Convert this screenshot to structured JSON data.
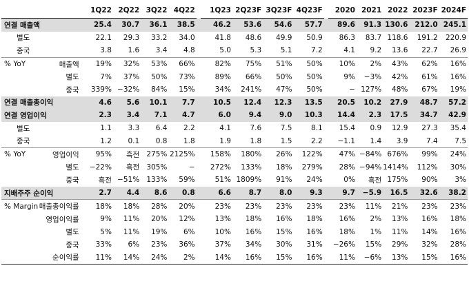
{
  "columns": [
    "1Q22",
    "2Q22",
    "3Q22",
    "4Q22",
    "1Q23",
    "2Q23F",
    "3Q23F",
    "4Q23F",
    "2020",
    "2021",
    "2022",
    "2023F",
    "2024F"
  ],
  "rows": [
    {
      "label": "연결 매출액",
      "sub": "",
      "style": "hl",
      "values": [
        "25.4",
        "30.7",
        "36.1",
        "38.5",
        "46.2",
        "53.6",
        "54.6",
        "57.7",
        "89.6",
        "91.3",
        "130.6",
        "212.0",
        "245.1"
      ]
    },
    {
      "label": "별도",
      "sub": "",
      "style": "indent",
      "values": [
        "22.1",
        "29.3",
        "33.2",
        "34.0",
        "41.8",
        "48.6",
        "49.9",
        "50.9",
        "86.3",
        "83.7",
        "118.6",
        "191.2",
        "220.9"
      ]
    },
    {
      "label": "중국",
      "sub": "",
      "style": "indent",
      "values": [
        "3.8",
        "1.6",
        "3.4",
        "4.8",
        "5.0",
        "5.3",
        "5.1",
        "7.2",
        "4.1",
        "9.2",
        "13.6",
        "22.7",
        "26.9"
      ]
    },
    {
      "label": "% YoY",
      "sub": "매출액",
      "style": "sep",
      "values": [
        "19%",
        "32%",
        "53%",
        "66%",
        "82%",
        "75%",
        "51%",
        "50%",
        "10%",
        "2%",
        "43%",
        "62%",
        "16%"
      ]
    },
    {
      "label": "",
      "sub": "별도",
      "style": "",
      "values": [
        "7%",
        "37%",
        "50%",
        "73%",
        "89%",
        "66%",
        "50%",
        "50%",
        "9%",
        "−3%",
        "42%",
        "61%",
        "16%"
      ]
    },
    {
      "label": "",
      "sub": "중국",
      "style": "",
      "values": [
        "339%",
        "−32%",
        "84%",
        "15%",
        "34%",
        "241%",
        "47%",
        "50%",
        "−",
        "127%",
        "48%",
        "67%",
        "19%"
      ]
    },
    {
      "label": "연결 매출총이익",
      "sub": "",
      "style": "hl",
      "values": [
        "4.6",
        "5.6",
        "10.1",
        "7.7",
        "10.5",
        "12.4",
        "12.3",
        "13.5",
        "20.5",
        "10.2",
        "27.9",
        "48.7",
        "57.2"
      ]
    },
    {
      "label": "연결 영업이익",
      "sub": "",
      "style": "hl",
      "values": [
        "2.3",
        "3.4",
        "7.1",
        "4.7",
        "6.0",
        "9.4",
        "9.0",
        "10.3",
        "14.4",
        "2.3",
        "17.5",
        "34.7",
        "42.9"
      ]
    },
    {
      "label": "별도",
      "sub": "",
      "style": "indent",
      "values": [
        "1.1",
        "3.3",
        "6.4",
        "2.2",
        "4.1",
        "7.6",
        "7.5",
        "8.1",
        "15.4",
        "0.9",
        "12.9",
        "27.3",
        "35.4"
      ]
    },
    {
      "label": "중국",
      "sub": "",
      "style": "indent",
      "values": [
        "1.2",
        "0.1",
        "0.8",
        "1.8",
        "1.9",
        "1.8",
        "1.5",
        "2.2",
        "−1.1",
        "1.4",
        "3.9",
        "7.4",
        "7.5"
      ]
    },
    {
      "label": "% YoY",
      "sub": "영업이익",
      "style": "sep",
      "values": [
        "95%",
        "흑전",
        "275%",
        "2125%",
        "158%",
        "180%",
        "26%",
        "122%",
        "47%",
        "−84%",
        "676%",
        "99%",
        "24%"
      ]
    },
    {
      "label": "",
      "sub": "별도",
      "style": "",
      "values": [
        "−22%",
        "흑전",
        "305%",
        "−",
        "272%",
        "133%",
        "18%",
        "279%",
        "28%",
        "−94%",
        "1414%",
        "112%",
        "30%"
      ]
    },
    {
      "label": "",
      "sub": "중국",
      "style": "",
      "values": [
        "흑전",
        "−51%",
        "133%",
        "59%",
        "51%",
        "1809%",
        "91%",
        "24%",
        "0%",
        "흑전",
        "175%",
        "90%",
        "3%"
      ]
    },
    {
      "label": "지배주주 순이익",
      "sub": "",
      "style": "hl",
      "values": [
        "2.7",
        "4.4",
        "8.6",
        "0.8",
        "6.6",
        "8.7",
        "8.0",
        "9.3",
        "9.7",
        "−5.9",
        "16.5",
        "32.6",
        "38.2"
      ]
    },
    {
      "label": "% Margin",
      "sub": "매출총이익률",
      "style": "sep",
      "values": [
        "18%",
        "18%",
        "28%",
        "20%",
        "23%",
        "23%",
        "23%",
        "23%",
        "23%",
        "11%",
        "21%",
        "23%",
        "23%"
      ]
    },
    {
      "label": "",
      "sub": "영업이익률",
      "style": "",
      "values": [
        "9%",
        "11%",
        "20%",
        "12%",
        "13%",
        "18%",
        "16%",
        "18%",
        "16%",
        "2%",
        "13%",
        "16%",
        "18%"
      ]
    },
    {
      "label": "",
      "sub": "별도",
      "style": "",
      "values": [
        "5%",
        "11%",
        "19%",
        "6%",
        "10%",
        "16%",
        "15%",
        "16%",
        "18%",
        "1%",
        "11%",
        "14%",
        "16%"
      ]
    },
    {
      "label": "",
      "sub": "중국",
      "style": "",
      "values": [
        "33%",
        "6%",
        "23%",
        "36%",
        "37%",
        "34%",
        "30%",
        "31%",
        "−26%",
        "15%",
        "29%",
        "32%",
        "28%"
      ]
    },
    {
      "label": "",
      "sub": "순이익률",
      "style": "last",
      "values": [
        "11%",
        "14%",
        "24%",
        "2%",
        "14%",
        "16%",
        "15%",
        "16%",
        "11%",
        "−6%",
        "13%",
        "15%",
        "16%"
      ]
    }
  ]
}
